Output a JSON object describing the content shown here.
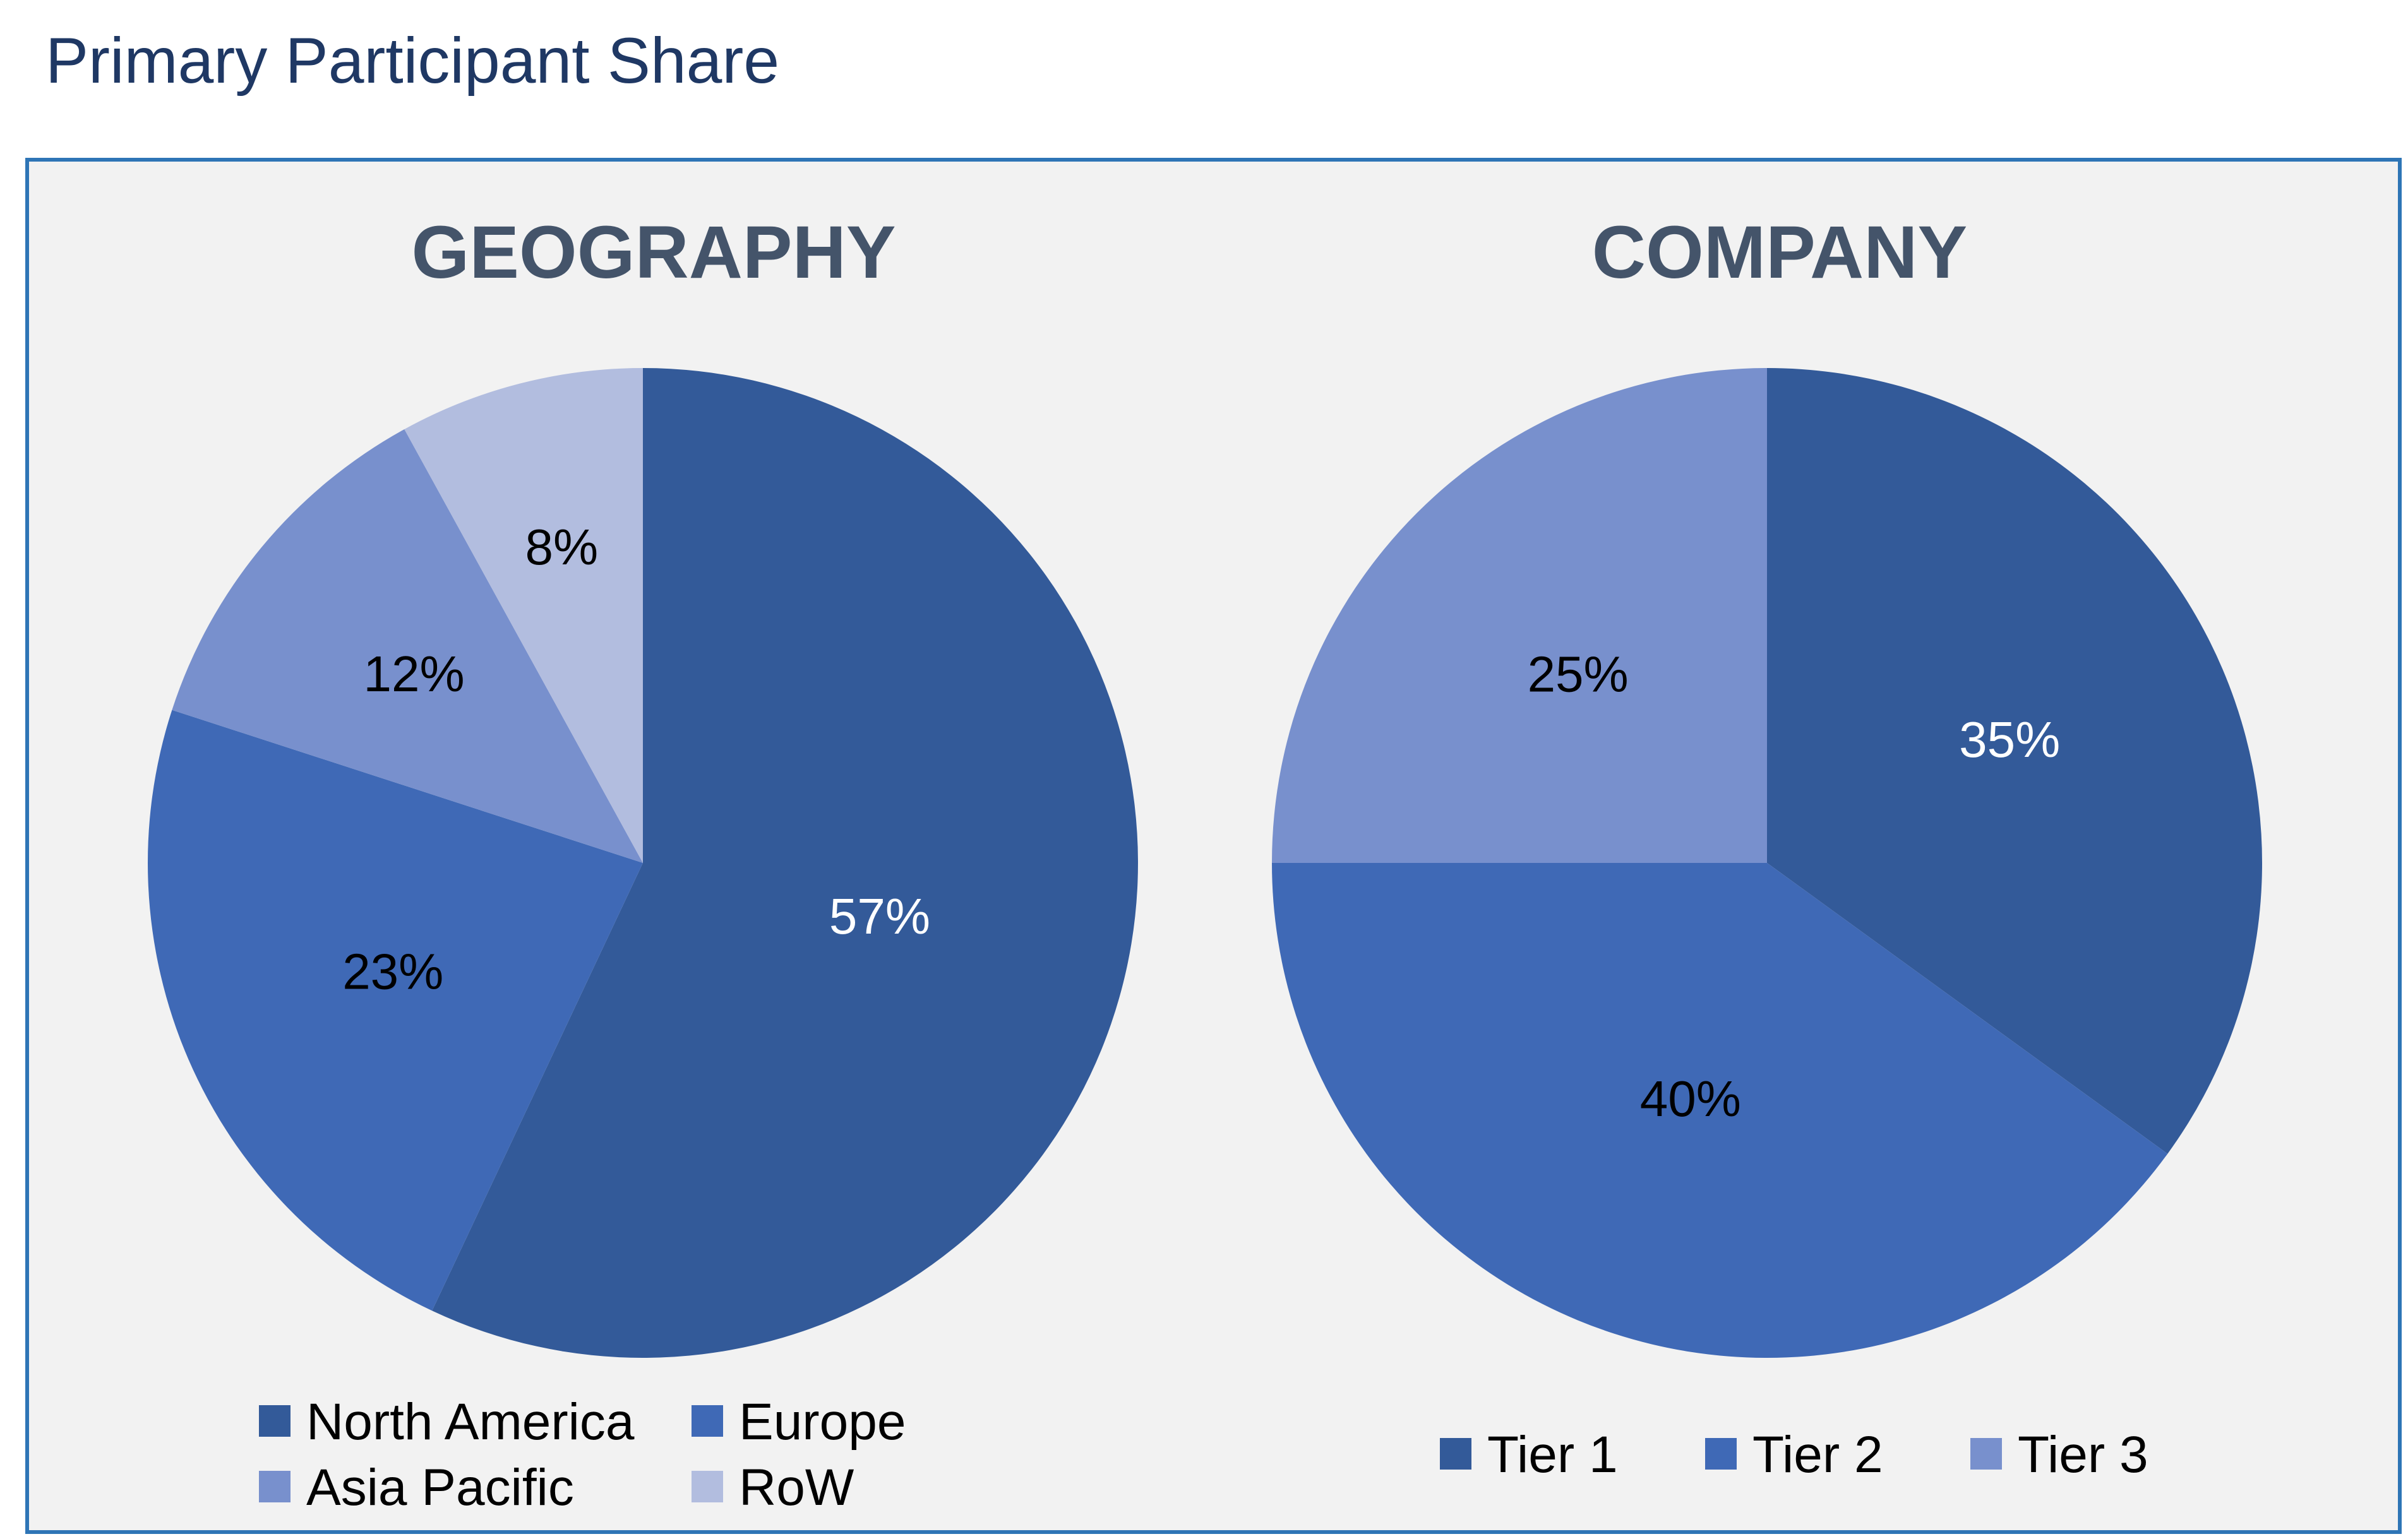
{
  "page": {
    "title": "Primary Participant Share"
  },
  "colors": {
    "panel_bg": "#f2f2f2",
    "panel_border": "#2e75b6",
    "heading": "#44546a",
    "page_title": "#1f3864"
  },
  "chart_data": [
    {
      "type": "pie",
      "title": "GEOGRAPHY",
      "categories": [
        "North America",
        "Europe",
        "Asia Pacific",
        "RoW"
      ],
      "values": [
        57,
        23,
        12,
        8
      ],
      "labels": [
        "57%",
        "23%",
        "12%",
        "8%"
      ],
      "colors": [
        "#335a99",
        "#3f69b6",
        "#7890cd",
        "#b2bddf"
      ],
      "label_colors": [
        "#ffffff",
        "#000000",
        "#000000",
        "#000000"
      ],
      "start_angle_deg": 0,
      "direction": "clockwise",
      "legend_position": "bottom"
    },
    {
      "type": "pie",
      "title": "COMPANY",
      "categories": [
        "Tier 1",
        "Tier 2",
        "Tier 3"
      ],
      "values": [
        35,
        40,
        25
      ],
      "labels": [
        "35%",
        "40%",
        "25%"
      ],
      "colors": [
        "#335a99",
        "#3f69b6",
        "#7890cd"
      ],
      "label_colors": [
        "#ffffff",
        "#000000",
        "#000000"
      ],
      "start_angle_deg": 0,
      "direction": "clockwise",
      "legend_position": "bottom"
    }
  ]
}
